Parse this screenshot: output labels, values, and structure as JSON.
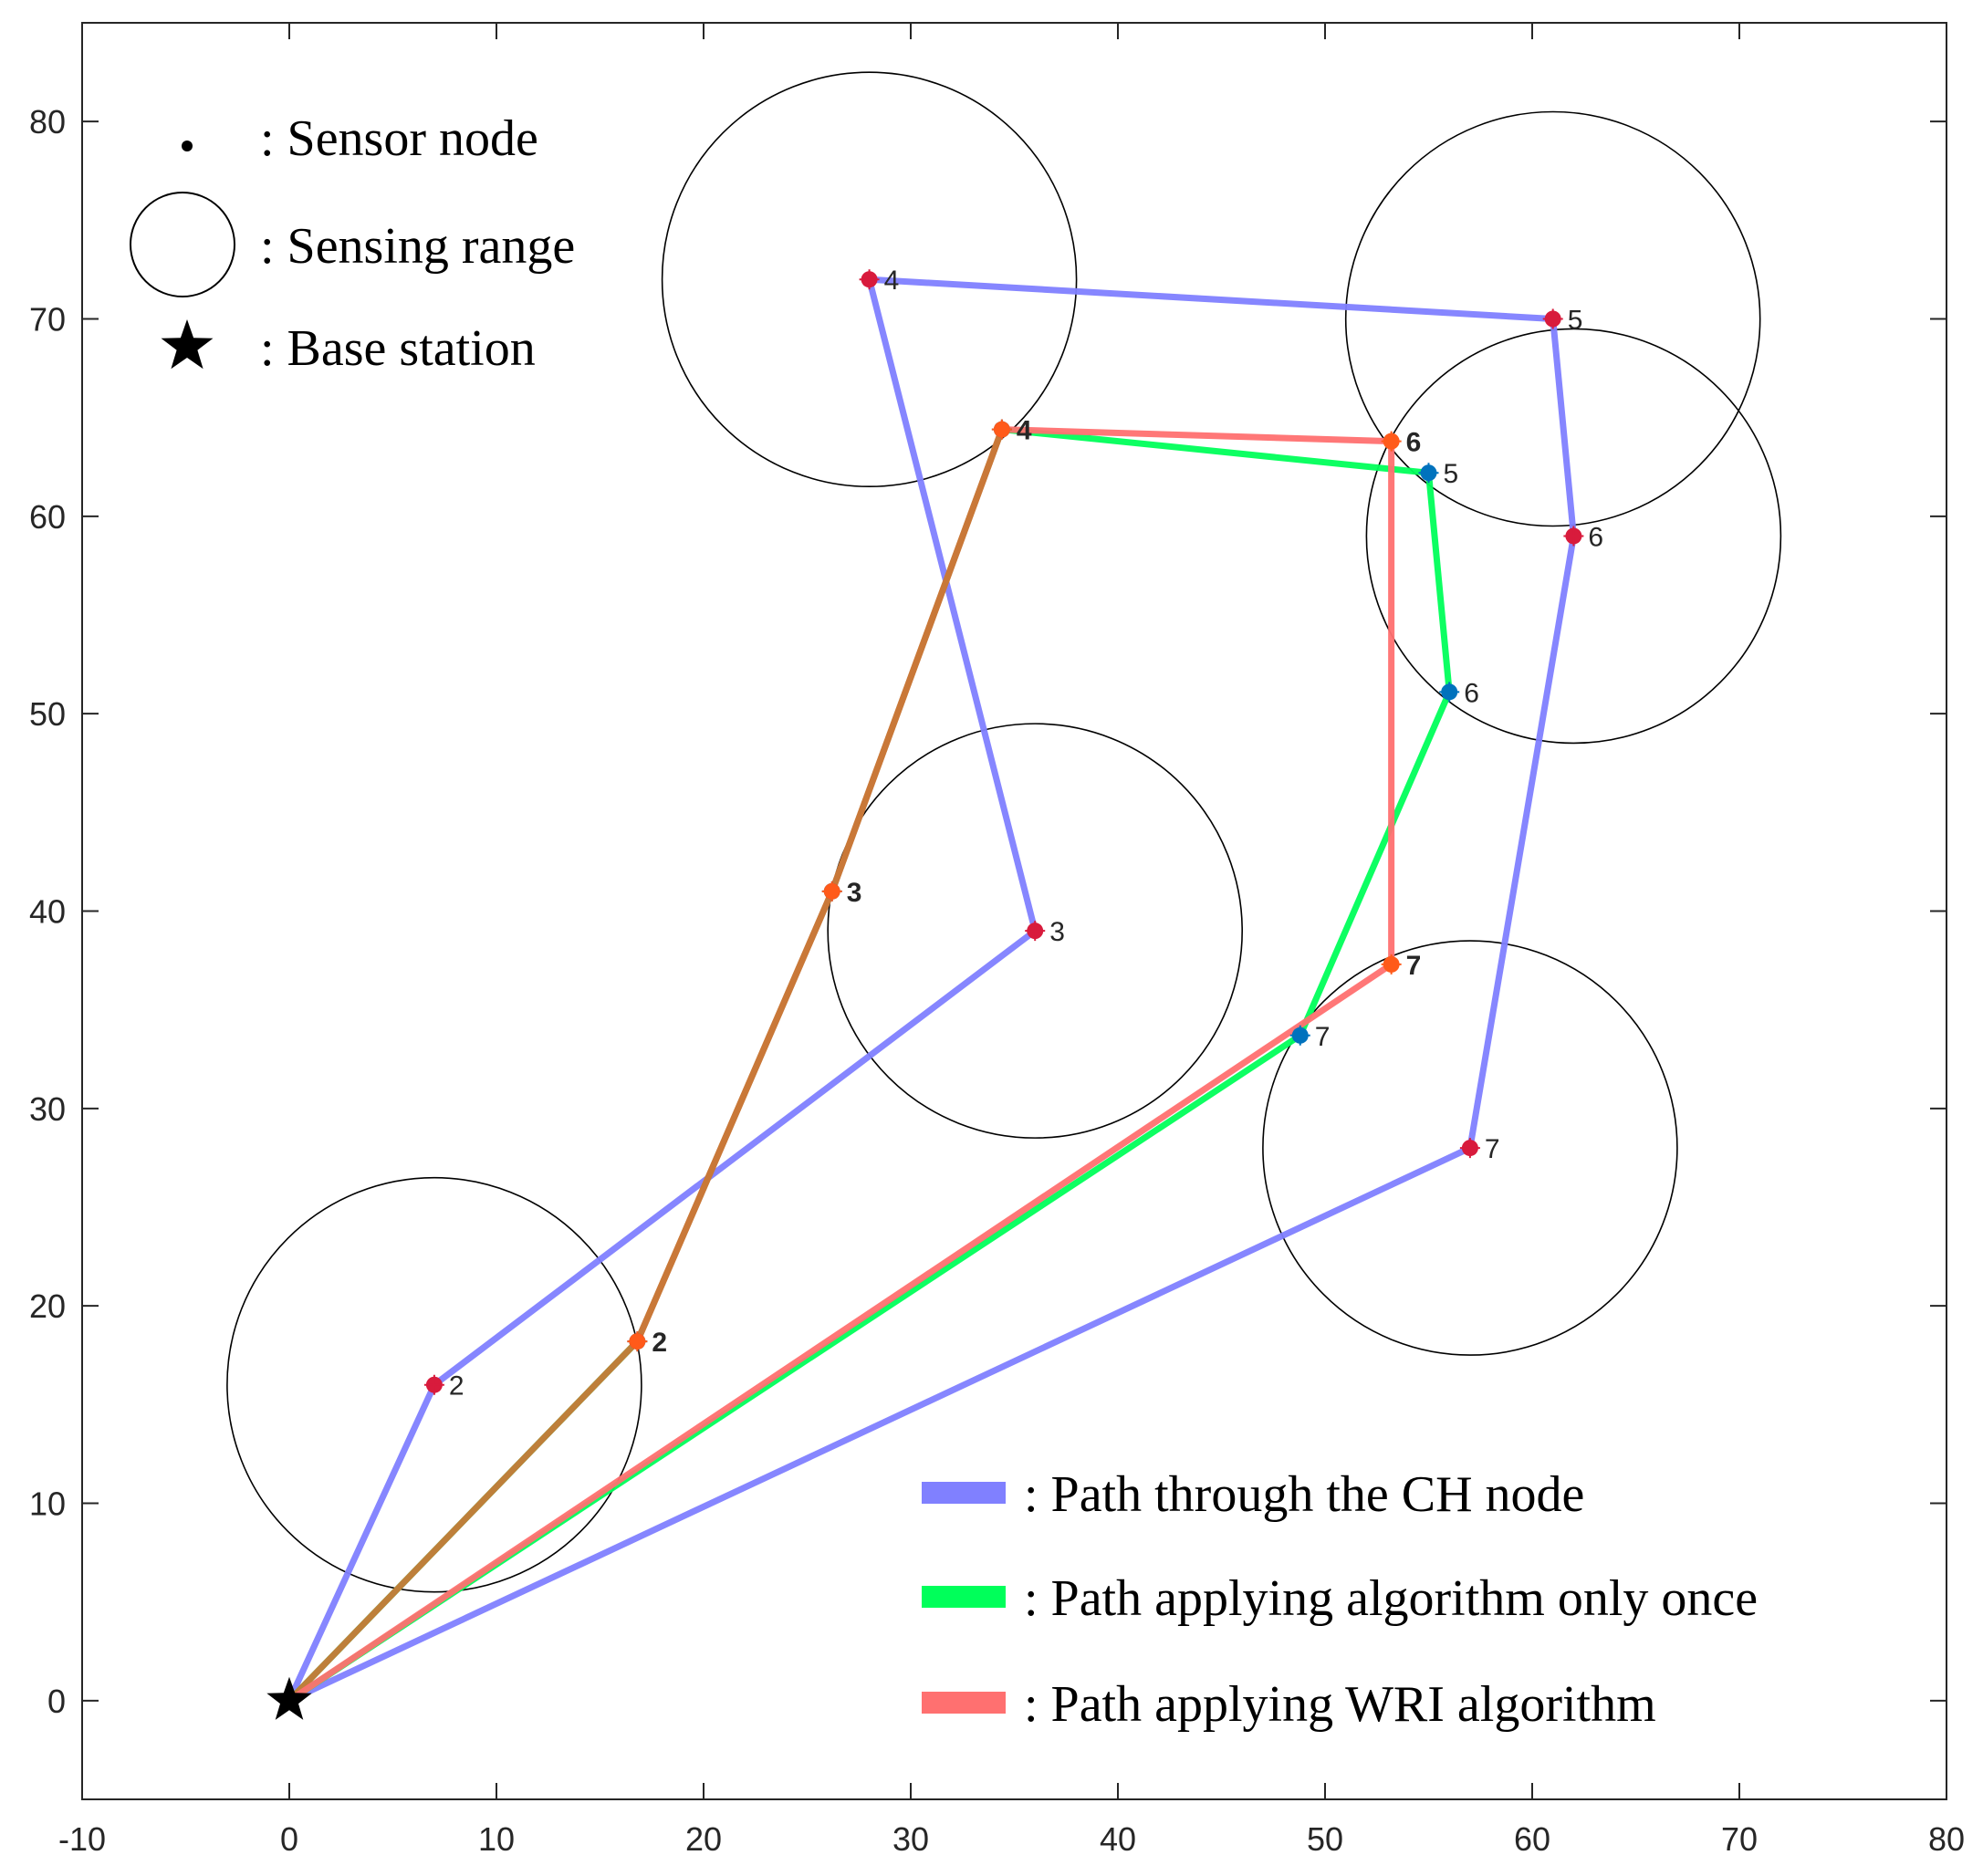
{
  "chart_data": {
    "type": "line",
    "title": "",
    "xlabel": "",
    "ylabel": "",
    "xlim": [
      -10,
      80
    ],
    "ylim": [
      -5,
      85
    ],
    "xticks": [
      -10,
      0,
      10,
      20,
      30,
      40,
      50,
      60,
      70,
      80
    ],
    "yticks": [
      0,
      10,
      20,
      30,
      40,
      50,
      60,
      70,
      80
    ],
    "grid": false,
    "base_station": {
      "x": 0,
      "y": 0
    },
    "sensing_radius": 10,
    "sensing_ranges": [
      {
        "cx": 7,
        "cy": 16
      },
      {
        "cx": 36,
        "cy": 39
      },
      {
        "cx": 28,
        "cy": 72
      },
      {
        "cx": 61,
        "cy": 70
      },
      {
        "cx": 62,
        "cy": 59
      },
      {
        "cx": 57,
        "cy": 28
      }
    ],
    "series": [
      {
        "name": "Path through the CH node",
        "color": "#8080ff",
        "marker_color": "#d81b3c",
        "bold_labels": false,
        "points": [
          {
            "x": 0,
            "y": 0,
            "label": ""
          },
          {
            "x": 7,
            "y": 16,
            "label": "2"
          },
          {
            "x": 36,
            "y": 39,
            "label": "3"
          },
          {
            "x": 28,
            "y": 72,
            "label": "4"
          },
          {
            "x": 61,
            "y": 70,
            "label": "5"
          },
          {
            "x": 62,
            "y": 59,
            "label": "6"
          },
          {
            "x": 57,
            "y": 28,
            "label": "7"
          },
          {
            "x": 0,
            "y": 0,
            "label": ""
          }
        ]
      },
      {
        "name": "Path applying algorithm only once",
        "color": "#00ff5a",
        "marker_color": "#0072bd",
        "bold_labels": false,
        "points": [
          {
            "x": 0,
            "y": 0,
            "label": ""
          },
          {
            "x": 16.8,
            "y": 18.2,
            "label": ""
          },
          {
            "x": 26.2,
            "y": 41,
            "label": ""
          },
          {
            "x": 34.4,
            "y": 64.4,
            "label": ""
          },
          {
            "x": 55,
            "y": 62.2,
            "label": "5"
          },
          {
            "x": 56,
            "y": 51.1,
            "label": "6"
          },
          {
            "x": 48.8,
            "y": 33.7,
            "label": "7"
          },
          {
            "x": 0,
            "y": 0,
            "label": ""
          }
        ]
      },
      {
        "name": "Path applying WRI algorithm",
        "color": "#ff7070",
        "marker_color": "#ff5a1a",
        "bold_labels": true,
        "points": [
          {
            "x": 0,
            "y": 0,
            "label": ""
          },
          {
            "x": 16.8,
            "y": 18.2,
            "label": "2"
          },
          {
            "x": 26.2,
            "y": 41,
            "label": "3"
          },
          {
            "x": 34.4,
            "y": 64.4,
            "label": "4"
          },
          {
            "x": 53.2,
            "y": 63.8,
            "label": "6"
          },
          {
            "x": 53.2,
            "y": 37.3,
            "label": "7"
          },
          {
            "x": 0,
            "y": 0,
            "label": ""
          }
        ]
      }
    ],
    "shared_segment_color": "#c87838",
    "legend_symbols": [
      {
        "symbol": "dot",
        "text": ": Sensor node"
      },
      {
        "symbol": "circle",
        "text": ": Sensing range"
      },
      {
        "symbol": "star",
        "text": ": Base station"
      }
    ],
    "legend_paths": [
      {
        "color": "#8080ff",
        "text": ": Path through the CH node"
      },
      {
        "color": "#00ff5a",
        "text": ": Path applying algorithm only once"
      },
      {
        "color": "#ff7070",
        "text": ": Path applying WRI algorithm"
      }
    ]
  }
}
